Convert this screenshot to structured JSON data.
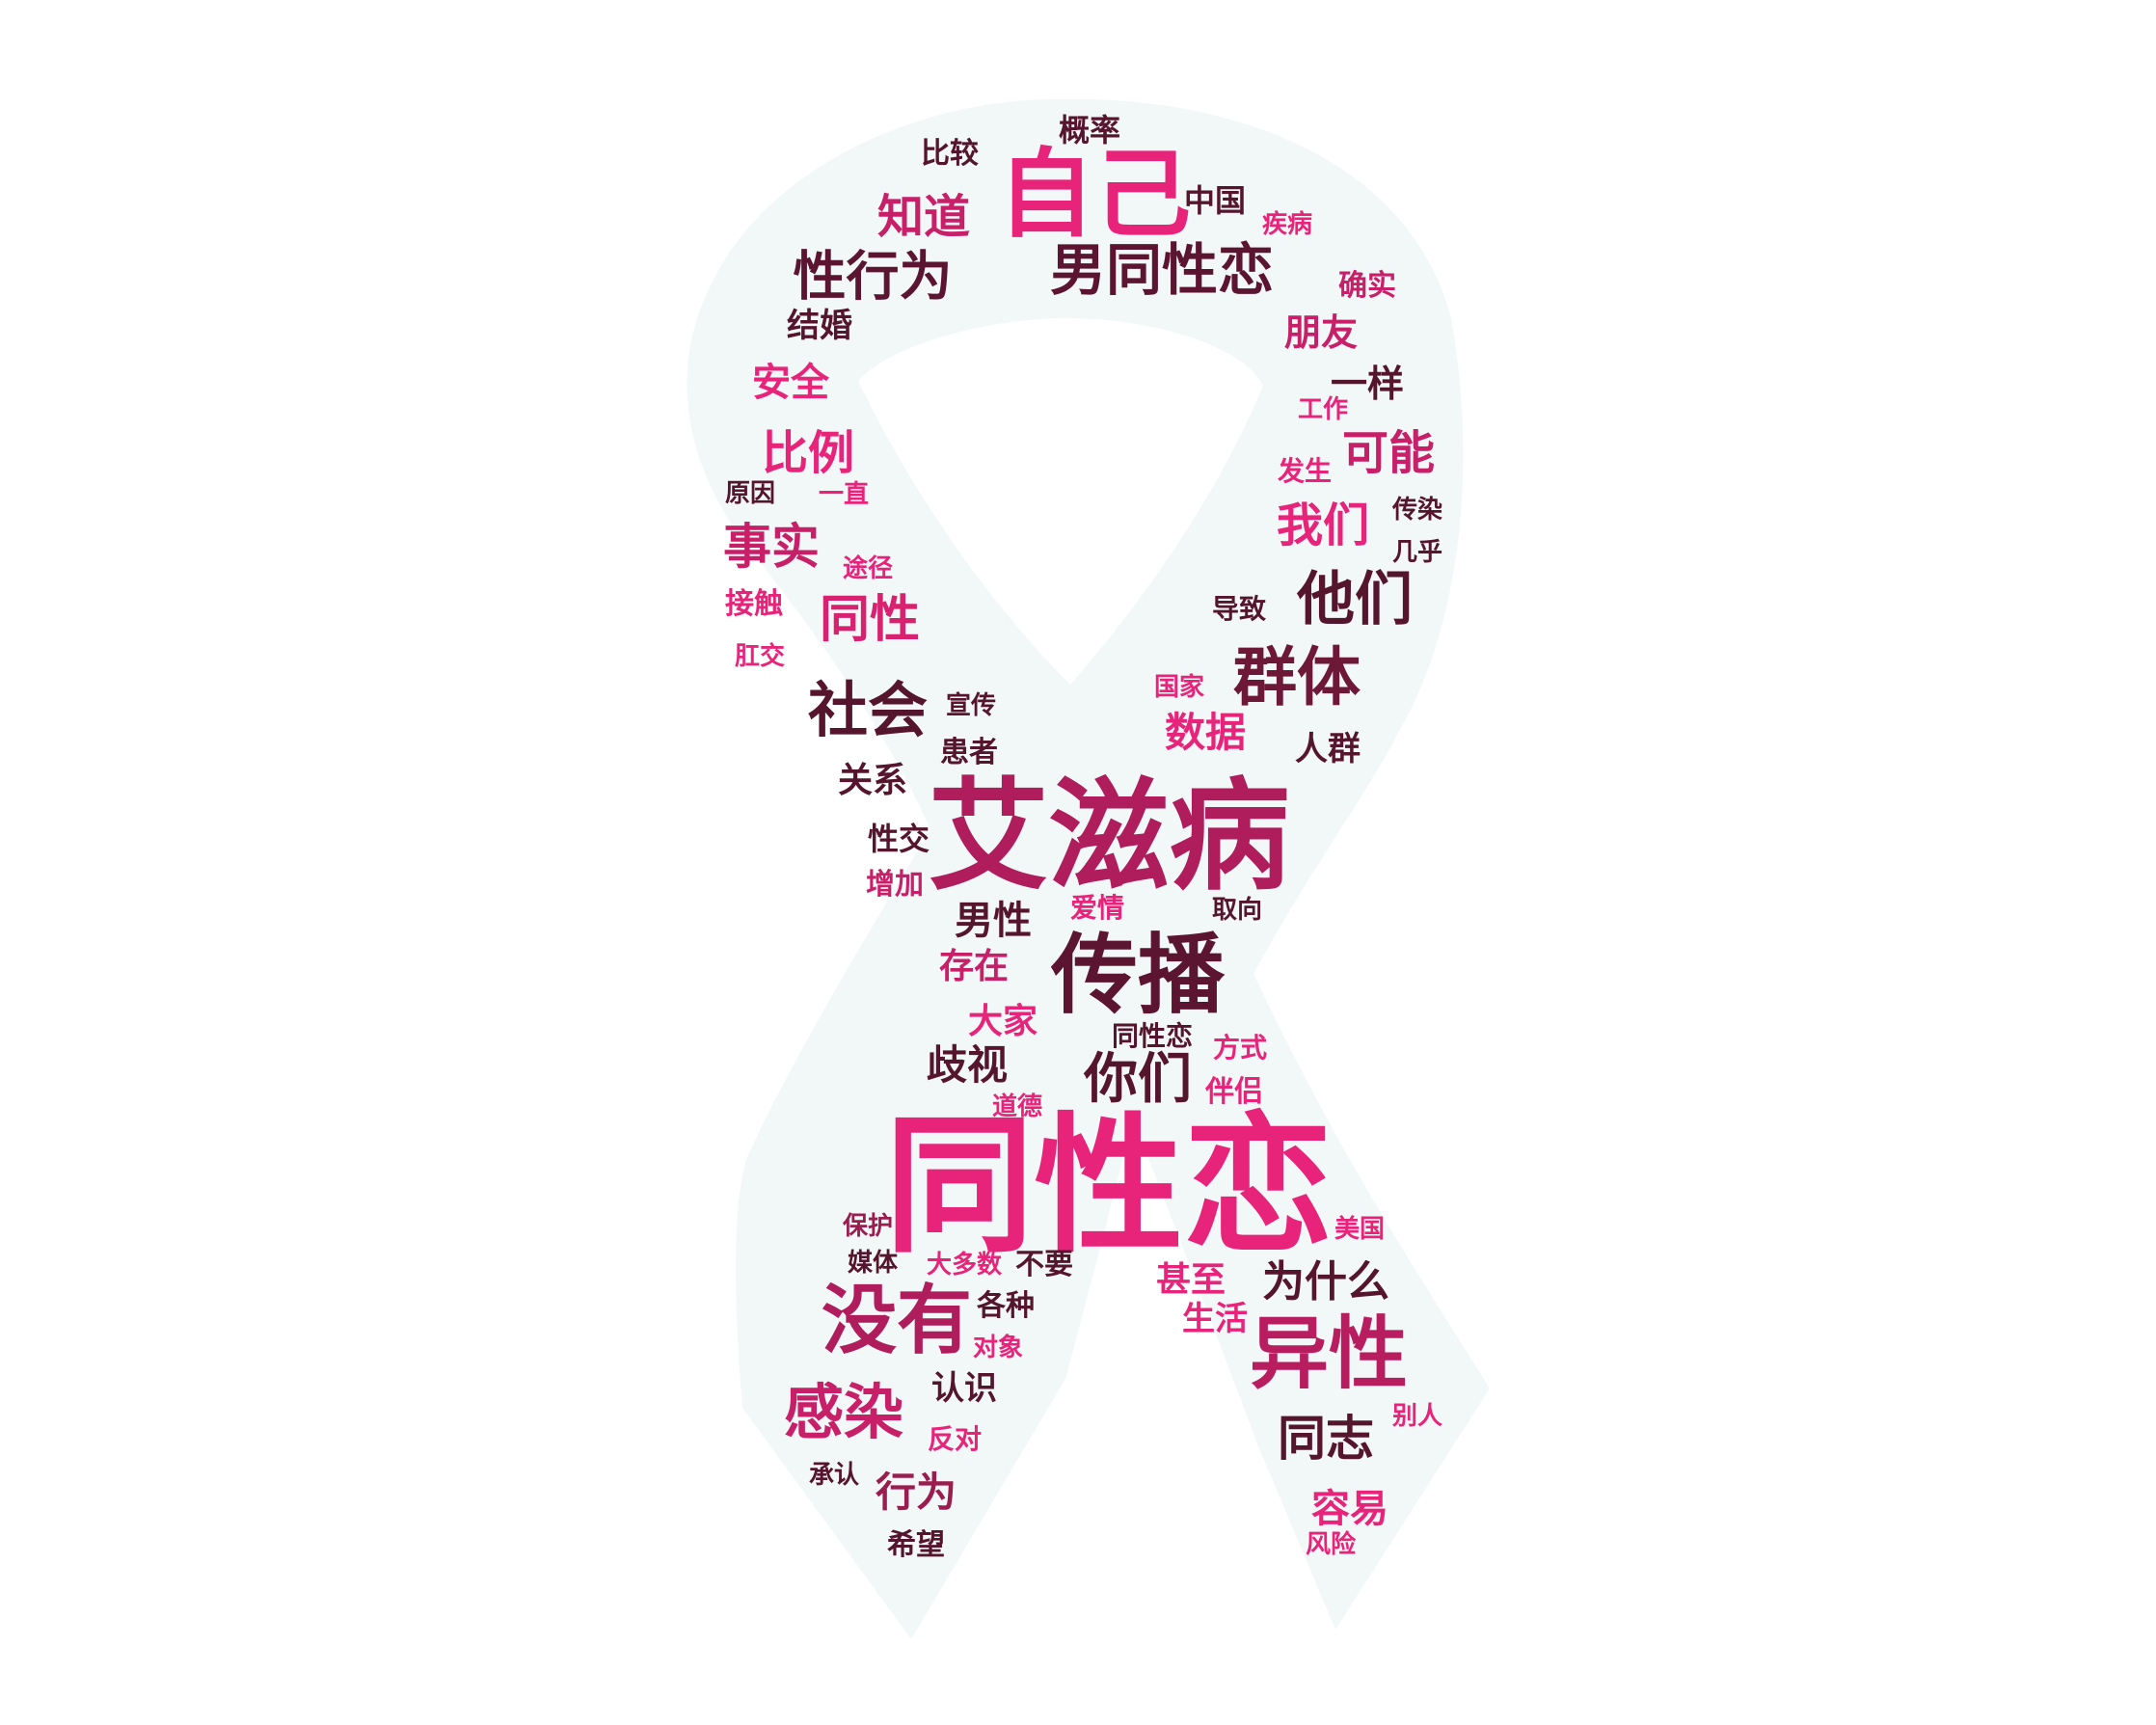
{
  "colors": {
    "background": "#ffffff",
    "ribbon": "#f2f8f8",
    "palette": [
      "#e8247a",
      "#c71f68",
      "#9b1d4f",
      "#6e1838",
      "#55152c"
    ]
  },
  "words": [
    {
      "text": "同性恋",
      "color": "#e8247a"
    },
    {
      "text": "艾滋病",
      "color": "#b01d5c"
    },
    {
      "text": "自己",
      "color": "#e8247a"
    },
    {
      "text": "传播",
      "color": "#5c1530"
    },
    {
      "text": "男同性恋",
      "color": "#5c1530"
    },
    {
      "text": "异性",
      "color": "#b81d5f"
    },
    {
      "text": "没有",
      "color": "#b01d5c"
    },
    {
      "text": "群体",
      "color": "#6e1838"
    },
    {
      "text": "他们",
      "color": "#55152c"
    },
    {
      "text": "性行为",
      "color": "#5c1530"
    },
    {
      "text": "社会",
      "color": "#55152c"
    },
    {
      "text": "感染",
      "color": "#c71f68"
    },
    {
      "text": "同性",
      "color": "#d8226f"
    },
    {
      "text": "知道",
      "color": "#c71f68"
    },
    {
      "text": "你们",
      "color": "#55152c"
    },
    {
      "text": "事实",
      "color": "#c71f68"
    },
    {
      "text": "比例",
      "color": "#e8247a"
    },
    {
      "text": "可能",
      "color": "#c71f68"
    },
    {
      "text": "我们",
      "color": "#e8247a"
    },
    {
      "text": "同志",
      "color": "#55152c"
    },
    {
      "text": "数据",
      "color": "#e8247a"
    },
    {
      "text": "为什么",
      "color": "#55152c"
    },
    {
      "text": "歧视",
      "color": "#55152c"
    },
    {
      "text": "男性",
      "color": "#55152c"
    },
    {
      "text": "安全",
      "color": "#e8247a"
    },
    {
      "text": "朋友",
      "color": "#c71f68"
    },
    {
      "text": "容易",
      "color": "#e8247a"
    },
    {
      "text": "甚至",
      "color": "#e8247a"
    },
    {
      "text": "行为",
      "color": "#9b1d4f"
    },
    {
      "text": "存在",
      "color": "#c71f68"
    },
    {
      "text": "大家",
      "color": "#e8247a"
    },
    {
      "text": "关系",
      "color": "#55152c"
    },
    {
      "text": "结婚",
      "color": "#55152c"
    },
    {
      "text": "一样",
      "color": "#55152c"
    },
    {
      "text": "人群",
      "color": "#55152c"
    },
    {
      "text": "生活",
      "color": "#e8247a"
    },
    {
      "text": "认识",
      "color": "#55152c"
    },
    {
      "text": "性交",
      "color": "#55152c"
    },
    {
      "text": "中国",
      "color": "#55152c"
    },
    {
      "text": "概率",
      "color": "#55152c"
    },
    {
      "text": "确实",
      "color": "#c71f68"
    },
    {
      "text": "比较",
      "color": "#55152c"
    },
    {
      "text": "伴侣",
      "color": "#e8247a"
    },
    {
      "text": "各种",
      "color": "#55152c"
    },
    {
      "text": "不要",
      "color": "#55152c"
    },
    {
      "text": "希望",
      "color": "#55152c"
    },
    {
      "text": "增加",
      "color": "#c71f68"
    },
    {
      "text": "接触",
      "color": "#e8247a"
    },
    {
      "text": "患者",
      "color": "#55152c"
    },
    {
      "text": "同性恋",
      "color": "#55152c"
    },
    {
      "text": "方式",
      "color": "#e8247a"
    },
    {
      "text": "发生",
      "color": "#e8247a"
    },
    {
      "text": "传染",
      "color": "#55152c"
    },
    {
      "text": "宣传",
      "color": "#55152c"
    },
    {
      "text": "导致",
      "color": "#55152c"
    },
    {
      "text": "爱情",
      "color": "#e8247a"
    },
    {
      "text": "取向",
      "color": "#55152c"
    },
    {
      "text": "疾病",
      "color": "#e8247a"
    },
    {
      "text": "国家",
      "color": "#e8247a"
    },
    {
      "text": "美国",
      "color": "#e8247a"
    },
    {
      "text": "别人",
      "color": "#e8247a"
    },
    {
      "text": "风险",
      "color": "#e8247a"
    },
    {
      "text": "反对",
      "color": "#e8247a"
    },
    {
      "text": "对象",
      "color": "#e8247a"
    },
    {
      "text": "道德",
      "color": "#e8247a"
    },
    {
      "text": "大多数",
      "color": "#e8247a"
    },
    {
      "text": "媒体",
      "color": "#55152c"
    },
    {
      "text": "保护",
      "color": "#9b1d4f"
    },
    {
      "text": "承认",
      "color": "#55152c"
    },
    {
      "text": "原因",
      "color": "#55152c"
    },
    {
      "text": "一直",
      "color": "#e8247a"
    },
    {
      "text": "途径",
      "color": "#e8247a"
    },
    {
      "text": "肛交",
      "color": "#e8247a"
    },
    {
      "text": "几乎",
      "color": "#55152c"
    },
    {
      "text": "工作",
      "color": "#e8247a"
    }
  ]
}
